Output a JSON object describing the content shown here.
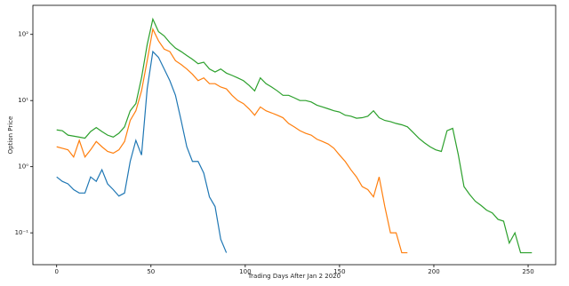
{
  "chart_data": {
    "type": "line",
    "x_label": "Trading Days After Jan 2 2020",
    "y_label": "Option Price",
    "log_y": true,
    "x": [
      0,
      3,
      6,
      9,
      12,
      15,
      18,
      21,
      24,
      27,
      30,
      33,
      36,
      39,
      42,
      45,
      48,
      51,
      54,
      57,
      60,
      63,
      66,
      69,
      72,
      75,
      78,
      81,
      84,
      87,
      90,
      93,
      96,
      99,
      102,
      105,
      108,
      111,
      114,
      117,
      120,
      123,
      126,
      129,
      132,
      135,
      138,
      141,
      144,
      147,
      150,
      153,
      156,
      159,
      162,
      165,
      168,
      171,
      174,
      177,
      180,
      183,
      186,
      189,
      192,
      195,
      198,
      201,
      204,
      207,
      210,
      213,
      216,
      219,
      222,
      225,
      228,
      231,
      234,
      237,
      240,
      243,
      246,
      249,
      252
    ],
    "series": [
      {
        "color": "#1f77b4",
        "values": [
          0.7,
          0.6,
          0.55,
          0.45,
          0.4,
          0.4,
          0.7,
          0.6,
          0.9,
          0.55,
          0.45,
          0.36,
          0.4,
          1.2,
          2.5,
          1.5,
          15,
          55,
          45,
          30,
          20,
          12,
          5,
          2,
          1.2,
          1.2,
          0.8,
          0.35,
          0.25,
          0.08,
          0.05,
          null,
          null,
          null,
          null,
          null,
          null,
          null,
          null,
          null,
          null,
          null,
          null,
          null,
          null,
          null,
          null,
          null,
          null,
          null,
          null,
          null,
          null,
          null,
          null,
          null,
          null,
          null,
          null,
          null,
          null,
          null,
          null,
          null,
          null,
          null,
          null,
          null,
          null,
          null,
          null,
          null,
          null,
          null,
          null,
          null,
          null,
          null,
          null,
          null,
          null,
          null,
          null,
          null,
          null
        ]
      },
      {
        "color": "#ff7f0e",
        "values": [
          2.0,
          1.9,
          1.8,
          1.4,
          2.5,
          1.4,
          1.8,
          2.4,
          2.0,
          1.7,
          1.6,
          1.8,
          2.4,
          5,
          7,
          14,
          40,
          120,
          80,
          60,
          55,
          40,
          35,
          30,
          25,
          20,
          22,
          18,
          18,
          16,
          15,
          12,
          10,
          9,
          7.5,
          6,
          8,
          7,
          6.5,
          6,
          5.5,
          4.5,
          4,
          3.5,
          3.2,
          3,
          2.6,
          2.4,
          2.2,
          1.9,
          1.5,
          1.2,
          0.9,
          0.7,
          0.5,
          0.45,
          0.35,
          0.7,
          0.25,
          0.1,
          0.1,
          0.05,
          0.05,
          null,
          null,
          null,
          null,
          null,
          null,
          null,
          null,
          null,
          null,
          null,
          null,
          null,
          null,
          null,
          null,
          null,
          null,
          null,
          null,
          null,
          null
        ]
      },
      {
        "color": "#2ca02c",
        "values": [
          3.6,
          3.5,
          3.0,
          2.9,
          2.8,
          2.7,
          3.4,
          3.9,
          3.4,
          3.0,
          2.8,
          3.2,
          4.0,
          7,
          9,
          22,
          70,
          170,
          110,
          95,
          75,
          62,
          55,
          48,
          42,
          36,
          38,
          30,
          27,
          30,
          26,
          24,
          22,
          20,
          17,
          14,
          22,
          18,
          16,
          14,
          12,
          12,
          11,
          10,
          10,
          9.5,
          8.5,
          8,
          7.5,
          7,
          6.7,
          6,
          5.8,
          5.4,
          5.5,
          5.8,
          7,
          5.5,
          5,
          4.8,
          4.5,
          4.3,
          4,
          3.3,
          2.7,
          2.3,
          2,
          1.8,
          1.7,
          3.5,
          3.8,
          1.5,
          0.5,
          0.38,
          0.3,
          0.26,
          0.22,
          0.2,
          0.16,
          0.15,
          0.07,
          0.1,
          0.05,
          0.05,
          0.05
        ]
      }
    ],
    "xlim": [
      -12.6,
      264.6
    ],
    "xticks": [
      0,
      50,
      100,
      150,
      200,
      250
    ],
    "ylim": [
      0.033,
      275
    ],
    "yticks": [
      {
        "value": 0.1,
        "label": "10⁻¹"
      },
      {
        "value": 1,
        "label": "10⁰"
      },
      {
        "value": 10,
        "label": "10¹"
      },
      {
        "value": 100,
        "label": "10²"
      }
    ]
  }
}
